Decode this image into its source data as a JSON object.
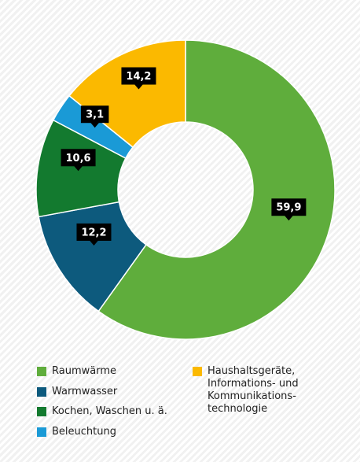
{
  "chart_data": {
    "type": "donut",
    "categories": [
      "Raumwärme",
      "Warmwasser",
      "Kochen, Waschen u. ä.",
      "Beleuchtung",
      "Haushaltsgeräte,\nInformations- und\nKommunikations-\ntechnologie"
    ],
    "values": [
      59.9,
      12.2,
      10.6,
      3.1,
      14.2
    ],
    "value_labels": [
      "59,9",
      "12,2",
      "10,6",
      "3,1",
      "14,2"
    ],
    "colors": [
      "#5fad3c",
      "#0d5a7d",
      "#137a2f",
      "#1a9ad6",
      "#fbb900"
    ]
  }
}
